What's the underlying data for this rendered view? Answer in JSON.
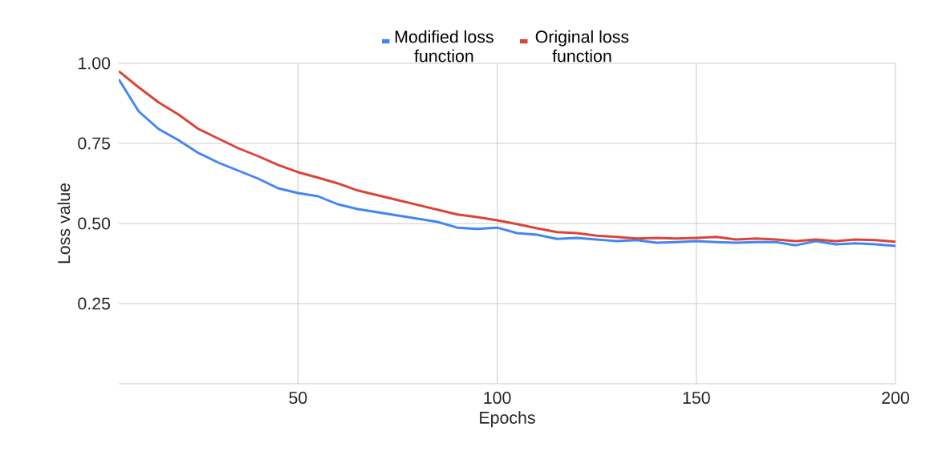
{
  "chart_data": {
    "type": "line",
    "xlabel": "Epochs",
    "ylabel": "Loss value",
    "x": [
      5,
      10,
      15,
      20,
      25,
      30,
      35,
      40,
      45,
      50,
      55,
      60,
      65,
      70,
      75,
      80,
      85,
      90,
      95,
      100,
      105,
      110,
      115,
      120,
      125,
      130,
      135,
      140,
      145,
      150,
      155,
      160,
      165,
      170,
      175,
      180,
      185,
      190,
      195,
      200
    ],
    "series": [
      {
        "name": "Modified loss function",
        "color": "#4285f4",
        "values": [
          0.95,
          0.85,
          0.795,
          0.76,
          0.72,
          0.69,
          0.665,
          0.64,
          0.61,
          0.595,
          0.585,
          0.56,
          0.545,
          0.535,
          0.525,
          0.515,
          0.505,
          0.487,
          0.483,
          0.487,
          0.47,
          0.465,
          0.452,
          0.455,
          0.45,
          0.445,
          0.448,
          0.44,
          0.442,
          0.445,
          0.442,
          0.44,
          0.442,
          0.442,
          0.432,
          0.445,
          0.435,
          0.438,
          0.435,
          0.43
        ]
      },
      {
        "name": "Original loss function",
        "color": "#db4437",
        "values": [
          0.975,
          0.925,
          0.878,
          0.84,
          0.795,
          0.765,
          0.735,
          0.71,
          0.683,
          0.66,
          0.643,
          0.625,
          0.603,
          0.588,
          0.573,
          0.558,
          0.543,
          0.528,
          0.52,
          0.51,
          0.498,
          0.485,
          0.473,
          0.47,
          0.462,
          0.458,
          0.453,
          0.455,
          0.453,
          0.455,
          0.458,
          0.45,
          0.453,
          0.45,
          0.445,
          0.45,
          0.445,
          0.45,
          0.448,
          0.443
        ]
      }
    ],
    "xlim": [
      5,
      200
    ],
    "ylim": [
      0,
      1
    ],
    "xticks": [
      50,
      100,
      150,
      200
    ],
    "yticks": [
      {
        "value": 0,
        "label": null
      },
      0.25,
      {
        "value": 0.5,
        "label": "0.50"
      },
      0.75,
      {
        "value": 1,
        "label": "1.00"
      }
    ],
    "grid": true,
    "legend": "top"
  }
}
